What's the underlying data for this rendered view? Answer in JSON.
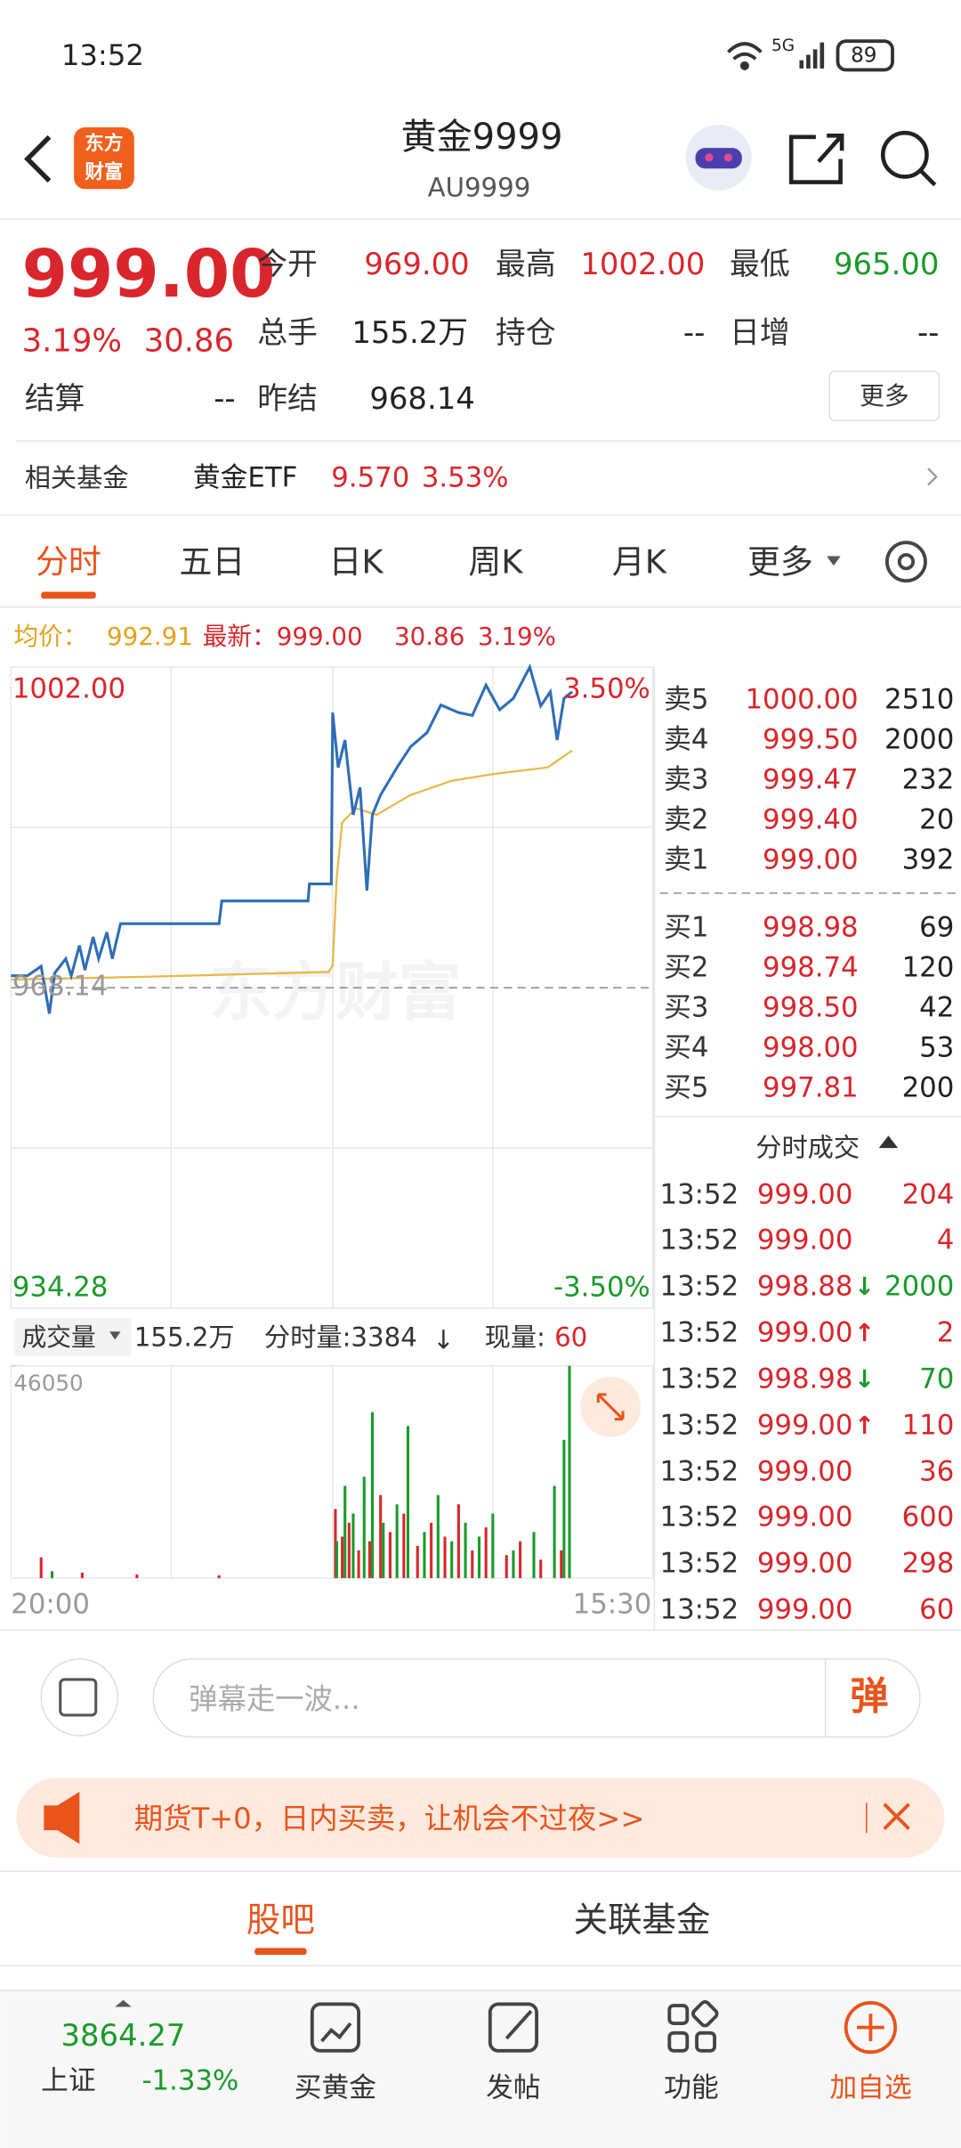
{
  "status_bar": {
    "time": "13:52",
    "network": "5G",
    "battery": "89"
  },
  "header": {
    "logo": [
      "东方",
      "财富"
    ],
    "title": "黄金9999",
    "code": "AU9999"
  },
  "quote": {
    "price": "999.00",
    "change_pct": "3.19%",
    "change": "30.86",
    "fields": [
      {
        "label": "今开",
        "value": "969.00",
        "color": "#d9262c"
      },
      {
        "label": "最高",
        "value": "1002.00",
        "color": "#d9262c"
      },
      {
        "label": "最低",
        "value": "965.00",
        "color": "#1a9a2a"
      },
      {
        "label": "总手",
        "value": "155.2万",
        "color": "#222"
      },
      {
        "label": "持仓",
        "value": "--",
        "color": "#222"
      },
      {
        "label": "日增",
        "value": "--",
        "color": "#222"
      },
      {
        "label": "结算",
        "value": "--",
        "color": "#222"
      },
      {
        "label": "昨结",
        "value": "968.14",
        "color": "#222"
      }
    ],
    "more": "更多"
  },
  "related_fund": {
    "label": "相关基金",
    "name": "黄金ETF",
    "price": "9.570",
    "pct": "3.53%"
  },
  "tabs": {
    "items": [
      "分时",
      "五日",
      "日K",
      "周K",
      "月K",
      "更多"
    ],
    "active": 0
  },
  "avg_row": {
    "avg_label": "均价：",
    "avg": "992.91",
    "last_label": "最新：",
    "last": "999.00",
    "change": "30.86",
    "pct": "3.19%"
  },
  "chart_data": {
    "type": "line",
    "ylim": [
      934.28,
      1002.0
    ],
    "yticks": [
      {
        "value": 1002.0,
        "label": "1002.00"
      },
      968.14,
      934.28
    ],
    "xlim": [
      0,
      469
    ],
    "pct_labels": [
      "3.50%",
      "-3.50%"
    ],
    "series": [
      {
        "name": "price",
        "color": "#2f6db5",
        "x": [
          0,
          12,
          22,
          28,
          32,
          40,
          44,
          50,
          54,
          60,
          64,
          70,
          74,
          80,
          152,
          154,
          217,
          218,
          234,
          235,
          239,
          244,
          250,
          255,
          260,
          264,
          270,
          282,
          292,
          304,
          314,
          327,
          337,
          347,
          357,
          367,
          379,
          387,
          394,
          399,
          404,
          410
        ],
        "values": [
          969.4,
          969.4,
          970.4,
          965.4,
          969.7,
          971.2,
          969.4,
          972.6,
          970,
          973.5,
          971.2,
          974,
          971.2,
          974.9,
          974.9,
          977.3,
          977.3,
          979.1,
          979.1,
          997.2,
          991.4,
          994.3,
          986.4,
          989.3,
          978.4,
          986.4,
          988.5,
          991.4,
          993.6,
          995.1,
          998,
          997.2,
          996.9,
          1000.1,
          997.5,
          998.7,
          1002,
          997.9,
          999.4,
          994.3,
          998.7,
          999.4
        ]
      },
      {
        "name": "average",
        "color": "#e8b94a",
        "x": [
          0,
          100,
          232,
          235,
          238,
          242,
          252,
          267,
          292,
          322,
          352,
          392,
          410
        ],
        "values": [
          969,
          969.3,
          969.8,
          970.5,
          979.9,
          985.6,
          987.1,
          986.4,
          988.5,
          990,
          990.7,
          991.4,
          993.2
        ]
      }
    ]
  },
  "volume_chart": {
    "type": "bar",
    "ylim": [
      0,
      46050
    ],
    "yticks": [
      46050
    ],
    "xlim": [
      0,
      469
    ],
    "xticks_labels": [
      "20:00",
      "15:30"
    ],
    "series": [
      {
        "name": "up",
        "color": "#d9262c",
        "x": [
          22,
          52,
          92,
          152,
          237,
          242,
          247,
          254,
          262,
          270,
          277,
          287,
          297,
          307,
          317,
          327,
          337,
          347,
          362,
          372,
          387,
          402
        ],
        "values": [
          4500,
          1200,
          800,
          600,
          15000,
          9000,
          12000,
          6000,
          8000,
          18000,
          10000,
          14000,
          7000,
          12000,
          9000,
          16000,
          6000,
          11000,
          5000,
          8000,
          4000,
          6000
        ]
      },
      {
        "name": "down",
        "color": "#1a9a2a",
        "x": [
          30,
          238,
          244,
          250,
          258,
          264,
          272,
          282,
          290,
          302,
          312,
          322,
          332,
          342,
          352,
          367,
          382,
          397,
          404,
          408
        ],
        "values": [
          1500,
          8000,
          20000,
          14000,
          22000,
          36000,
          12000,
          16000,
          33000,
          10000,
          18000,
          8000,
          12000,
          9000,
          14000,
          6000,
          10000,
          20000,
          30000,
          46050
        ]
      }
    ]
  },
  "volume_header": {
    "selector": "成交量",
    "total": "155.2万",
    "interval": "分时量:3384",
    "arrow": "↓",
    "current_label": "现量:",
    "current": "60"
  },
  "order_book": {
    "asks": [
      {
        "label": "卖5",
        "price": "1000.00",
        "volume": "2510"
      },
      {
        "label": "卖4",
        "price": "999.50",
        "volume": "2000"
      },
      {
        "label": "卖3",
        "price": "999.47",
        "volume": "232"
      },
      {
        "label": "卖2",
        "price": "999.40",
        "volume": "20"
      },
      {
        "label": "卖1",
        "price": "999.00",
        "volume": "392"
      }
    ],
    "bids": [
      {
        "label": "买1",
        "price": "998.98",
        "volume": "69"
      },
      {
        "label": "买2",
        "price": "998.74",
        "volume": "120"
      },
      {
        "label": "买3",
        "price": "998.50",
        "volume": "42"
      },
      {
        "label": "买4",
        "price": "998.00",
        "volume": "53"
      },
      {
        "label": "买5",
        "price": "997.81",
        "volume": "200"
      }
    ]
  },
  "trades": {
    "title": "分时成交",
    "rows": [
      {
        "time": "13:52",
        "price": "999.00",
        "arrow": null,
        "volume": "204",
        "color": "#d9262c"
      },
      {
        "time": "13:52",
        "price": "999.00",
        "arrow": null,
        "volume": "4",
        "color": "#d9262c"
      },
      {
        "time": "13:52",
        "price": "998.88",
        "arrow": "↓",
        "volume": "2000",
        "color": "#1a9a2a"
      },
      {
        "time": "13:52",
        "price": "999.00",
        "arrow": "↑",
        "volume": "2",
        "color": "#d9262c"
      },
      {
        "time": "13:52",
        "price": "998.98",
        "arrow": "↓",
        "volume": "70",
        "color": "#1a9a2a"
      },
      {
        "time": "13:52",
        "price": "999.00",
        "arrow": "↑",
        "volume": "110",
        "color": "#d9262c"
      },
      {
        "time": "13:52",
        "price": "999.00",
        "arrow": null,
        "volume": "36",
        "color": "#d9262c"
      },
      {
        "time": "13:52",
        "price": "999.00",
        "arrow": null,
        "volume": "600",
        "color": "#d9262c"
      },
      {
        "time": "13:52",
        "price": "999.00",
        "arrow": null,
        "volume": "298",
        "color": "#d9262c"
      },
      {
        "time": "13:52",
        "price": "999.00",
        "arrow": null,
        "volume": "60",
        "color": "#d9262c"
      }
    ]
  },
  "comment": {
    "placeholder": "弹幕走一波...",
    "button": "弹"
  },
  "banner": {
    "text": "期货T+0，日内买卖，让机会不过夜>>"
  },
  "tabs2": {
    "items": [
      "股吧",
      "关联基金"
    ],
    "active": 0
  },
  "nav": {
    "index": {
      "value": "3864.27",
      "name": "上证",
      "pct": "-1.33%"
    },
    "items": [
      "买黄金",
      "发帖",
      "功能",
      "加自选"
    ]
  }
}
